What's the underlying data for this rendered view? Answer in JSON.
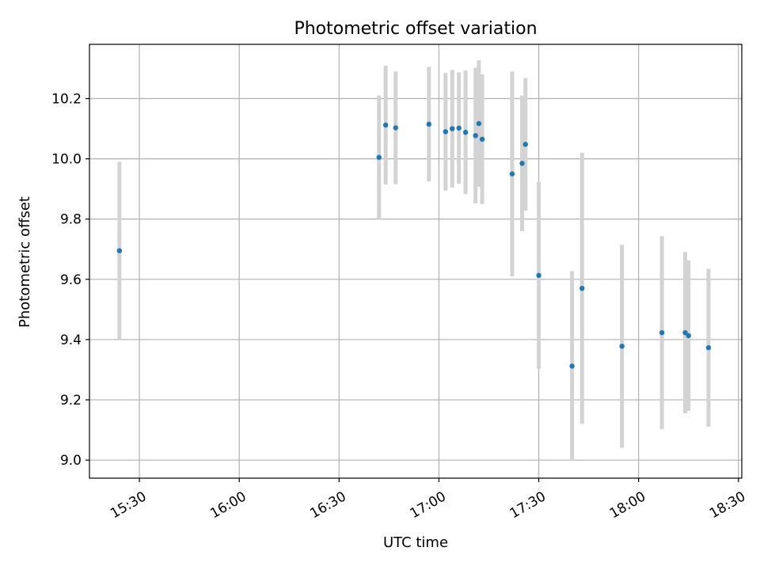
{
  "chart_data": {
    "type": "scatter",
    "title": "Photometric offset variation",
    "xlabel": "UTC time",
    "ylabel": "Photometric offset",
    "xlim": [
      "15:15",
      "18:31"
    ],
    "ylim": [
      8.94,
      10.38
    ],
    "x_ticks": [
      "15:30",
      "16:00",
      "16:30",
      "17:00",
      "17:30",
      "18:00",
      "18:30"
    ],
    "y_ticks": [
      "9.0",
      "9.2",
      "9.4",
      "9.6",
      "9.8",
      "10.0",
      "10.2"
    ],
    "grid": true,
    "colors": {
      "points": "#1f77b4",
      "errorbars": "#d3d3d3",
      "grid": "#b0b0b0"
    },
    "points": [
      {
        "x": "15:24",
        "y": 9.695,
        "yerr": 0.295
      },
      {
        "x": "16:42",
        "y": 10.005,
        "yerr": 0.205
      },
      {
        "x": "16:44",
        "y": 10.112,
        "yerr": 0.197
      },
      {
        "x": "16:47",
        "y": 10.103,
        "yerr": 0.187
      },
      {
        "x": "16:57",
        "y": 10.115,
        "yerr": 0.19
      },
      {
        "x": "17:02",
        "y": 10.09,
        "yerr": 0.195
      },
      {
        "x": "17:04",
        "y": 10.1,
        "yerr": 0.195
      },
      {
        "x": "17:06",
        "y": 10.102,
        "yerr": 0.185
      },
      {
        "x": "17:08",
        "y": 10.088,
        "yerr": 0.205
      },
      {
        "x": "17:11",
        "y": 10.077,
        "yerr": 0.225
      },
      {
        "x": "17:12",
        "y": 10.117,
        "yerr": 0.21
      },
      {
        "x": "17:13",
        "y": 10.065,
        "yerr": 0.215
      },
      {
        "x": "17:22",
        "y": 9.95,
        "yerr": 0.34
      },
      {
        "x": "17:25",
        "y": 9.985,
        "yerr": 0.225
      },
      {
        "x": "17:26",
        "y": 10.048,
        "yerr": 0.22
      },
      {
        "x": "17:30",
        "y": 9.613,
        "yerr": 0.31
      },
      {
        "x": "17:40",
        "y": 9.312,
        "yerr": 0.315
      },
      {
        "x": "17:43",
        "y": 9.57,
        "yerr": 0.45
      },
      {
        "x": "17:55",
        "y": 9.378,
        "yerr": 0.337
      },
      {
        "x": "18:07",
        "y": 9.423,
        "yerr": 0.32
      },
      {
        "x": "18:14",
        "y": 9.423,
        "yerr": 0.268
      },
      {
        "x": "18:15",
        "y": 9.413,
        "yerr": 0.25
      },
      {
        "x": "18:21",
        "y": 9.373,
        "yerr": 0.262
      }
    ]
  }
}
